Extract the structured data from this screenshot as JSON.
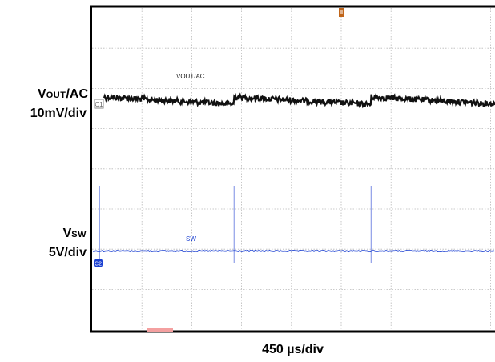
{
  "chart_data": {
    "type": "line",
    "instrument": "oscilloscope",
    "colors": {
      "ch1": "#111111",
      "ch2": "#1a3fd1",
      "grid": "#b9b9b9",
      "frame": "#000000",
      "trigger_marker": "#c0651a",
      "ch2_marker": "#1a3fd1",
      "ch1_marker": "#999999"
    },
    "grid": true,
    "time_scale": "450 µs/div",
    "channels": [
      {
        "id": "ch1",
        "name": "VOUT/AC",
        "left_label": {
          "main": "V",
          "sub": "OUT",
          "suffix": "/AC"
        },
        "scale": "10mV/div",
        "trace_label": "VOUT/AC",
        "marker": "C1",
        "description": "ripple: near-flat with slow downward drift, stepping up at each switching pulse",
        "step_positions_div": [
          2.85,
          5.6
        ]
      },
      {
        "id": "ch2",
        "name": "SW",
        "left_label": {
          "main": "V",
          "sub": "SW",
          "suffix": ""
        },
        "scale": "5V/div",
        "trace_label": "SW",
        "marker": "C2",
        "pulse_positions_div": [
          0.15,
          2.85,
          5.6
        ]
      }
    ]
  }
}
